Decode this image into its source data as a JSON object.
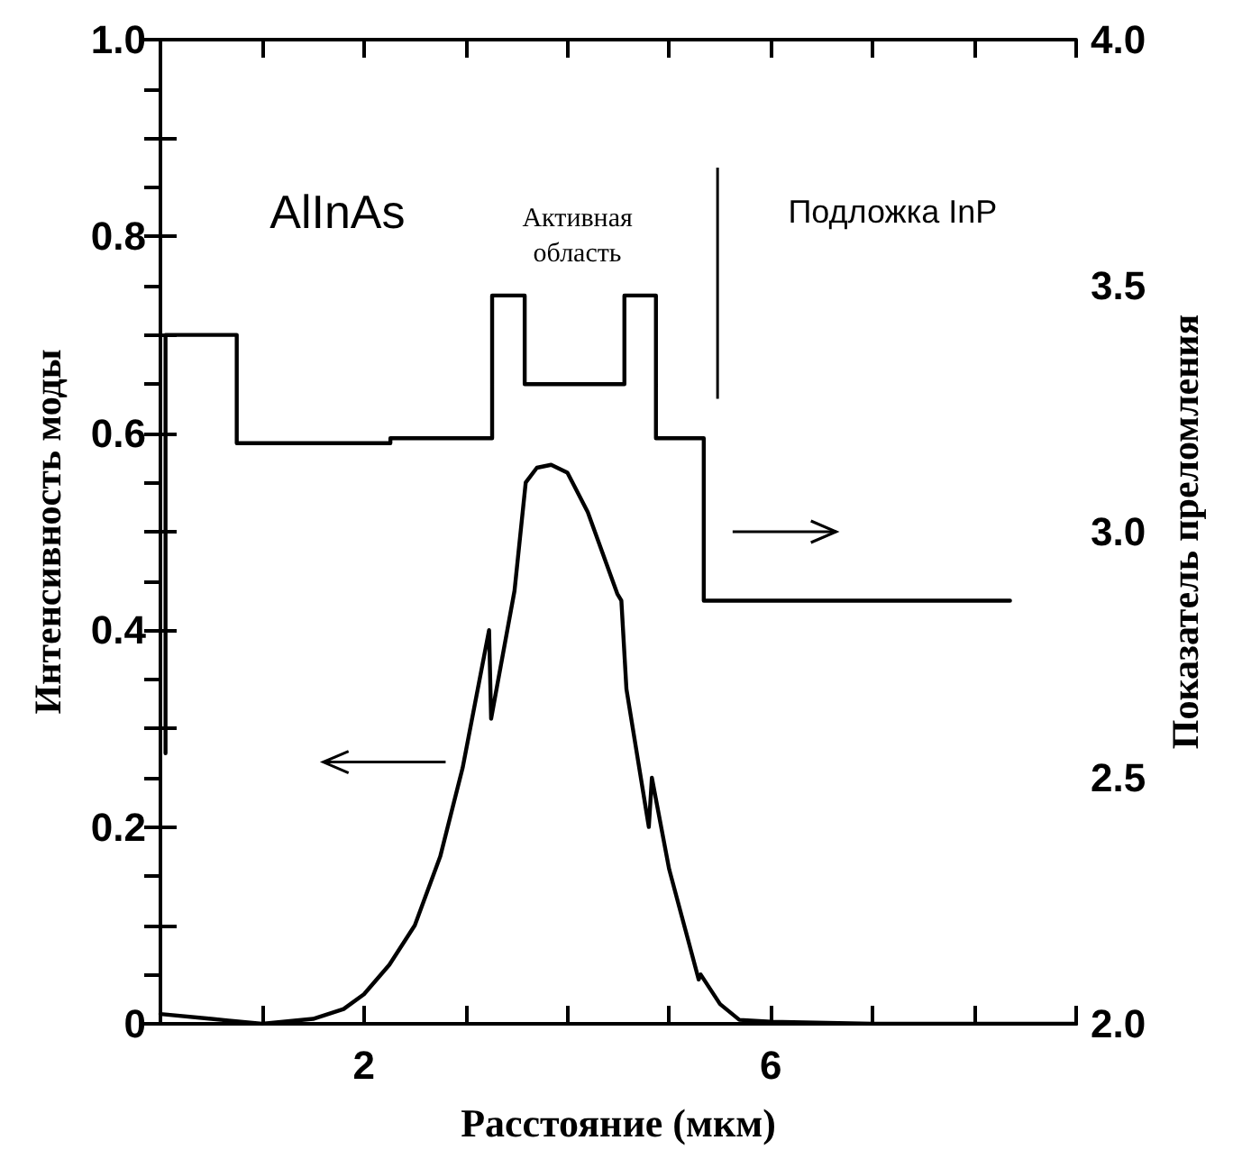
{
  "chart_data": {
    "type": "line",
    "xlabel": "Расстояние (мкм)",
    "ylabel": "Интенсивность моды",
    "y2label": "Показатель преломления",
    "annotations": [
      "AlInAs",
      "Активная область",
      "Подложка InP"
    ],
    "xlim": [
      0,
      9
    ],
    "xticks": [
      {
        "value": 0,
        "label": null
      },
      {
        "value": 1,
        "label": null
      },
      {
        "value": 2,
        "label": "2"
      },
      {
        "value": 3,
        "label": null
      },
      {
        "value": 4,
        "label": null
      },
      {
        "value": 5,
        "label": null
      },
      {
        "value": 6,
        "label": "6"
      },
      {
        "value": 7,
        "label": null
      },
      {
        "value": 8,
        "label": null
      },
      {
        "value": 9,
        "label": null
      }
    ],
    "ylim": [
      0,
      1
    ],
    "yticks": [
      0,
      {
        "value": 0.1,
        "label": null
      },
      0.2,
      {
        "value": 0.3,
        "label": null
      },
      0.4,
      {
        "value": 0.5,
        "label": null
      },
      0.6,
      {
        "value": 0.7,
        "label": null
      },
      0.8,
      {
        "value": 0.9,
        "label": null
      },
      {
        "value": 1,
        "label": "1.0"
      }
    ],
    "y2lim": [
      2,
      4
    ],
    "y2ticks": [
      {
        "value": 2,
        "label": "2.0"
      },
      {
        "value": 2.1,
        "label": null
      },
      {
        "value": 2.2,
        "label": null
      },
      {
        "value": 2.3,
        "label": null
      },
      {
        "value": 2.4,
        "label": null
      },
      {
        "value": 2.5,
        "label": "2.5"
      },
      {
        "value": 2.6,
        "label": null
      },
      {
        "value": 2.7,
        "label": null
      },
      {
        "value": 2.8,
        "label": null
      },
      {
        "value": 2.9,
        "label": null
      },
      {
        "value": 3,
        "label": "3.0"
      },
      {
        "value": 3.1,
        "label": null
      },
      {
        "value": 3.2,
        "label": null
      },
      {
        "value": 3.3,
        "label": null
      },
      {
        "value": 3.4,
        "label": null
      },
      {
        "value": 3.5,
        "label": "3.5"
      },
      {
        "value": 3.6,
        "label": null
      },
      {
        "value": 3.7,
        "label": null
      },
      {
        "value": 3.8,
        "label": null
      },
      {
        "value": 3.9,
        "label": null
      },
      {
        "value": 4,
        "label": "4.0"
      }
    ],
    "grid": false,
    "marker": "none",
    "line_style": "solid",
    "series": [
      {
        "type": "step",
        "axis": "y2",
        "color": "#000000",
        "x": [
          0.05,
          0.05,
          0.75,
          2.26,
          3.26,
          3.58,
          4.56,
          4.87,
          5.34,
          8.35
        ],
        "values": [
          2.55,
          3.4,
          3.18,
          3.19,
          3.48,
          3.3,
          3.48,
          3.19,
          2.86,
          2.86
        ]
      },
      {
        "color": "#000000",
        "x": [
          0,
          0.5,
          1,
          1.5,
          1.8,
          2,
          2.25,
          2.5,
          2.75,
          2.97,
          3.23,
          3.25,
          3.48,
          3.59,
          3.7,
          3.84,
          4.0,
          4.2,
          4.49,
          4.53,
          4.58,
          4.8,
          4.83,
          5.0,
          5.29,
          5.31,
          5.5,
          5.69,
          6,
          7,
          8,
          9
        ],
        "values": [
          0.01,
          0.005,
          0.0,
          0.005,
          0.015,
          0.03,
          0.06,
          0.1,
          0.17,
          0.26,
          0.4,
          0.31,
          0.44,
          0.55,
          0.565,
          0.568,
          0.56,
          0.52,
          0.437,
          0.43,
          0.34,
          0.2,
          0.25,
          0.157,
          0.045,
          0.05,
          0.02,
          0.004,
          0.002,
          0,
          0,
          0
        ]
      }
    ]
  }
}
